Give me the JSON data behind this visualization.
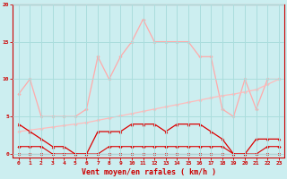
{
  "x": [
    0,
    1,
    2,
    3,
    4,
    5,
    6,
    7,
    8,
    9,
    10,
    11,
    12,
    13,
    14,
    15,
    16,
    17,
    18,
    19,
    20,
    21,
    22,
    23
  ],
  "line1_rafales": [
    8,
    10,
    5,
    5,
    5,
    5,
    6,
    13,
    10,
    13,
    15,
    18,
    15,
    15,
    15,
    15,
    13,
    13,
    6,
    5,
    10,
    6,
    10,
    10
  ],
  "line2_moyen": [
    3.0,
    3.2,
    3.4,
    3.6,
    3.8,
    4.0,
    4.2,
    4.5,
    4.8,
    5.1,
    5.4,
    5.7,
    6.0,
    6.3,
    6.6,
    6.9,
    7.2,
    7.5,
    7.8,
    8.0,
    8.3,
    8.6,
    9.3,
    10.0
  ],
  "line3_moy": [
    4,
    3,
    2,
    1,
    1,
    0,
    0,
    3,
    3,
    3,
    4,
    4,
    4,
    3,
    4,
    4,
    4,
    3,
    2,
    0,
    0,
    2,
    2,
    2
  ],
  "line4_min": [
    1,
    1,
    1,
    0,
    0,
    0,
    0,
    0,
    1,
    1,
    1,
    1,
    1,
    1,
    1,
    1,
    1,
    1,
    1,
    0,
    0,
    0,
    1,
    1
  ],
  "line5_zero": [
    0,
    0,
    0,
    0,
    0,
    0,
    0,
    0,
    0,
    0,
    0,
    0,
    0,
    0,
    0,
    0,
    0,
    0,
    0,
    0,
    0,
    0,
    0,
    0
  ],
  "background_color": "#cceef0",
  "grid_color": "#aadddd",
  "line1_color": "#ffaaaa",
  "line2_color": "#ffbbbb",
  "line3_color": "#dd0000",
  "line4_color": "#dd0000",
  "line5_color": "#dd0000",
  "xlabel": "Vent moyen/en rafales ( km/h )",
  "xlabel_color": "#cc0000",
  "tick_color": "#cc0000",
  "ylim": [
    -0.5,
    20
  ],
  "xlim": [
    -0.5,
    23.5
  ],
  "yticks": [
    0,
    5,
    10,
    15,
    20
  ],
  "xticks": [
    0,
    1,
    2,
    3,
    4,
    5,
    6,
    7,
    8,
    9,
    10,
    11,
    12,
    13,
    14,
    15,
    16,
    17,
    18,
    19,
    20,
    21,
    22,
    23
  ]
}
